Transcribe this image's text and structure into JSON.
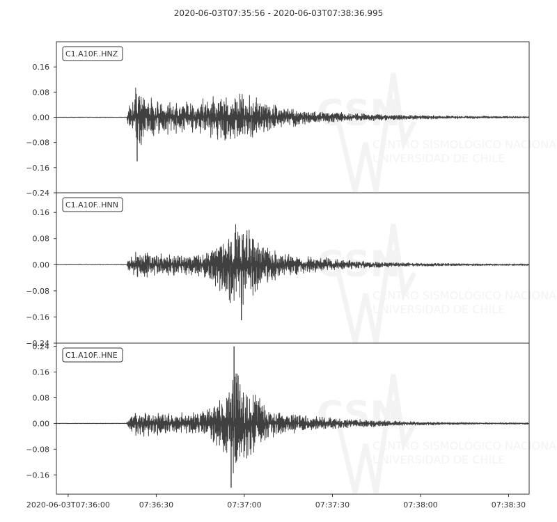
{
  "figure": {
    "title": "2020-06-03T07:35:56  -  2020-06-03T07:38:36.995"
  },
  "colors": {
    "trace": "#404040",
    "axis": "#333333",
    "background": "#ffffff",
    "watermark": "#f2f2f2"
  },
  "watermark": {
    "logo_text": "CSN",
    "line1": "CENTRO SISMOLÓGICO NACIONAL",
    "line2": "UNIVERSIDAD DE CHILE"
  },
  "chart_data": [
    {
      "type": "line",
      "name": "C1.A10F..HNZ",
      "ylim": [
        -0.24,
        0.24
      ],
      "yticks": [
        {
          "value": 0.16,
          "label": "0.16"
        },
        {
          "value": 0.08,
          "label": "0.08"
        },
        {
          "value": 0.0,
          "label": "0.00"
        },
        {
          "value": -0.08,
          "label": "−0.08"
        },
        {
          "value": -0.16,
          "label": "−0.16"
        },
        {
          "value": -0.24,
          "label": "−0.24"
        }
      ],
      "envelope": {
        "onset_s": 24,
        "noise": 0.002,
        "pos": [
          [
            24,
            0.01
          ],
          [
            25,
            0.04
          ],
          [
            26,
            0.09
          ],
          [
            27,
            0.12
          ],
          [
            28,
            0.11
          ],
          [
            30,
            0.08
          ],
          [
            33,
            0.065
          ],
          [
            37,
            0.055
          ],
          [
            42,
            0.05
          ],
          [
            47,
            0.06
          ],
          [
            52,
            0.07
          ],
          [
            57,
            0.085
          ],
          [
            61,
            0.09
          ],
          [
            64,
            0.085
          ],
          [
            68,
            0.07
          ],
          [
            72,
            0.05
          ],
          [
            78,
            0.035
          ],
          [
            85,
            0.025
          ],
          [
            95,
            0.018
          ],
          [
            105,
            0.013
          ],
          [
            120,
            0.008
          ],
          [
            135,
            0.005
          ],
          [
            150,
            0.004
          ],
          [
            161,
            0.003
          ]
        ],
        "neg": [
          [
            24,
            -0.01
          ],
          [
            25,
            -0.05
          ],
          [
            26,
            -0.1
          ],
          [
            27,
            -0.12
          ],
          [
            28,
            -0.11
          ],
          [
            30,
            -0.08
          ],
          [
            33,
            -0.065
          ],
          [
            37,
            -0.06
          ],
          [
            42,
            -0.05
          ],
          [
            47,
            -0.06
          ],
          [
            52,
            -0.075
          ],
          [
            57,
            -0.09
          ],
          [
            61,
            -0.095
          ],
          [
            64,
            -0.085
          ],
          [
            68,
            -0.07
          ],
          [
            72,
            -0.05
          ],
          [
            78,
            -0.035
          ],
          [
            85,
            -0.025
          ],
          [
            95,
            -0.018
          ],
          [
            105,
            -0.013
          ],
          [
            120,
            -0.008
          ],
          [
            135,
            -0.005
          ],
          [
            150,
            -0.004
          ],
          [
            161,
            -0.003
          ]
        ]
      },
      "peak": {
        "t": 27.5,
        "min": -0.14
      }
    },
    {
      "type": "line",
      "name": "C1.A10F..HNN",
      "ylim": [
        -0.24,
        0.22
      ],
      "yticks": [
        {
          "value": 0.16,
          "label": "0.16"
        },
        {
          "value": 0.08,
          "label": "0.08"
        },
        {
          "value": 0.0,
          "label": "0.00"
        },
        {
          "value": -0.08,
          "label": "−0.08"
        },
        {
          "value": -0.16,
          "label": "−0.16"
        },
        {
          "value": -0.24,
          "label": "−0.24"
        }
      ],
      "envelope": {
        "onset_s": 24,
        "noise": 0.002,
        "pos": [
          [
            24,
            0.01
          ],
          [
            25,
            0.02
          ],
          [
            27,
            0.04
          ],
          [
            29,
            0.05
          ],
          [
            32,
            0.04
          ],
          [
            36,
            0.035
          ],
          [
            42,
            0.035
          ],
          [
            48,
            0.035
          ],
          [
            52,
            0.05
          ],
          [
            56,
            0.09
          ],
          [
            60,
            0.13
          ],
          [
            63,
            0.15
          ],
          [
            66,
            0.12
          ],
          [
            69,
            0.09
          ],
          [
            72,
            0.06
          ],
          [
            77,
            0.04
          ],
          [
            85,
            0.03
          ],
          [
            95,
            0.02
          ],
          [
            105,
            0.012
          ],
          [
            120,
            0.007
          ],
          [
            135,
            0.004
          ],
          [
            150,
            0.003
          ],
          [
            161,
            0.003
          ]
        ],
        "neg": [
          [
            24,
            -0.01
          ],
          [
            25,
            -0.025
          ],
          [
            27,
            -0.04
          ],
          [
            29,
            -0.05
          ],
          [
            32,
            -0.045
          ],
          [
            36,
            -0.04
          ],
          [
            42,
            -0.035
          ],
          [
            48,
            -0.035
          ],
          [
            52,
            -0.05
          ],
          [
            56,
            -0.1
          ],
          [
            60,
            -0.14
          ],
          [
            63,
            -0.16
          ],
          [
            66,
            -0.12
          ],
          [
            69,
            -0.09
          ],
          [
            72,
            -0.06
          ],
          [
            77,
            -0.04
          ],
          [
            85,
            -0.03
          ],
          [
            95,
            -0.02
          ],
          [
            105,
            -0.012
          ],
          [
            120,
            -0.007
          ],
          [
            135,
            -0.004
          ],
          [
            150,
            -0.003
          ],
          [
            161,
            -0.003
          ]
        ]
      },
      "peak": {
        "t": 63,
        "min": -0.17
      }
    },
    {
      "type": "line",
      "name": "C1.A10F..HNE",
      "ylim": [
        -0.22,
        0.25
      ],
      "yticks": [
        {
          "value": 0.24,
          "label": "0.24"
        },
        {
          "value": 0.16,
          "label": "0.16"
        },
        {
          "value": 0.08,
          "label": "0.08"
        },
        {
          "value": 0.0,
          "label": "0.00"
        },
        {
          "value": -0.08,
          "label": "−0.08"
        },
        {
          "value": -0.16,
          "label": "−0.16"
        }
      ],
      "envelope": {
        "onset_s": 24,
        "noise": 0.002,
        "pos": [
          [
            24,
            0.01
          ],
          [
            25,
            0.02
          ],
          [
            27,
            0.04
          ],
          [
            29,
            0.045
          ],
          [
            32,
            0.04
          ],
          [
            36,
            0.035
          ],
          [
            42,
            0.035
          ],
          [
            48,
            0.035
          ],
          [
            52,
            0.05
          ],
          [
            56,
            0.1
          ],
          [
            59,
            0.15
          ],
          [
            61,
            0.2
          ],
          [
            63,
            0.16
          ],
          [
            66,
            0.12
          ],
          [
            69,
            0.09
          ],
          [
            72,
            0.06
          ],
          [
            77,
            0.04
          ],
          [
            85,
            0.025
          ],
          [
            95,
            0.02
          ],
          [
            105,
            0.012
          ],
          [
            120,
            0.007
          ],
          [
            135,
            0.004
          ],
          [
            150,
            0.003
          ],
          [
            161,
            0.003
          ]
        ],
        "neg": [
          [
            24,
            -0.01
          ],
          [
            25,
            -0.025
          ],
          [
            27,
            -0.04
          ],
          [
            29,
            -0.05
          ],
          [
            32,
            -0.045
          ],
          [
            36,
            -0.04
          ],
          [
            42,
            -0.035
          ],
          [
            48,
            -0.035
          ],
          [
            52,
            -0.05
          ],
          [
            56,
            -0.1
          ],
          [
            59,
            -0.16
          ],
          [
            61,
            -0.18
          ],
          [
            63,
            -0.15
          ],
          [
            66,
            -0.12
          ],
          [
            69,
            -0.09
          ],
          [
            72,
            -0.06
          ],
          [
            77,
            -0.04
          ],
          [
            85,
            -0.025
          ],
          [
            95,
            -0.02
          ],
          [
            105,
            -0.012
          ],
          [
            120,
            -0.007
          ],
          [
            135,
            -0.004
          ],
          [
            150,
            -0.003
          ],
          [
            161,
            -0.003
          ]
        ]
      },
      "peak": {
        "t": 60.5,
        "max": 0.24,
        "t2": 59.5,
        "min": -0.2
      }
    }
  ],
  "x_axis": {
    "start": "2020-06-03T07:35:56",
    "end": "2020-06-03T07:38:36.995",
    "ticks": [
      {
        "time": "2020-06-03T07:36:00",
        "label": "2020-06-03T07:36:00"
      },
      {
        "time": "2020-06-03T07:36:30",
        "label": "07:36:30"
      },
      {
        "time": "2020-06-03T07:37:00",
        "label": "07:37:00"
      },
      {
        "time": "2020-06-03T07:37:30",
        "label": "07:37:30"
      },
      {
        "time": "2020-06-03T07:38:00",
        "label": "07:38:00"
      },
      {
        "time": "2020-06-03T07:38:30",
        "label": "07:38:30"
      }
    ]
  }
}
